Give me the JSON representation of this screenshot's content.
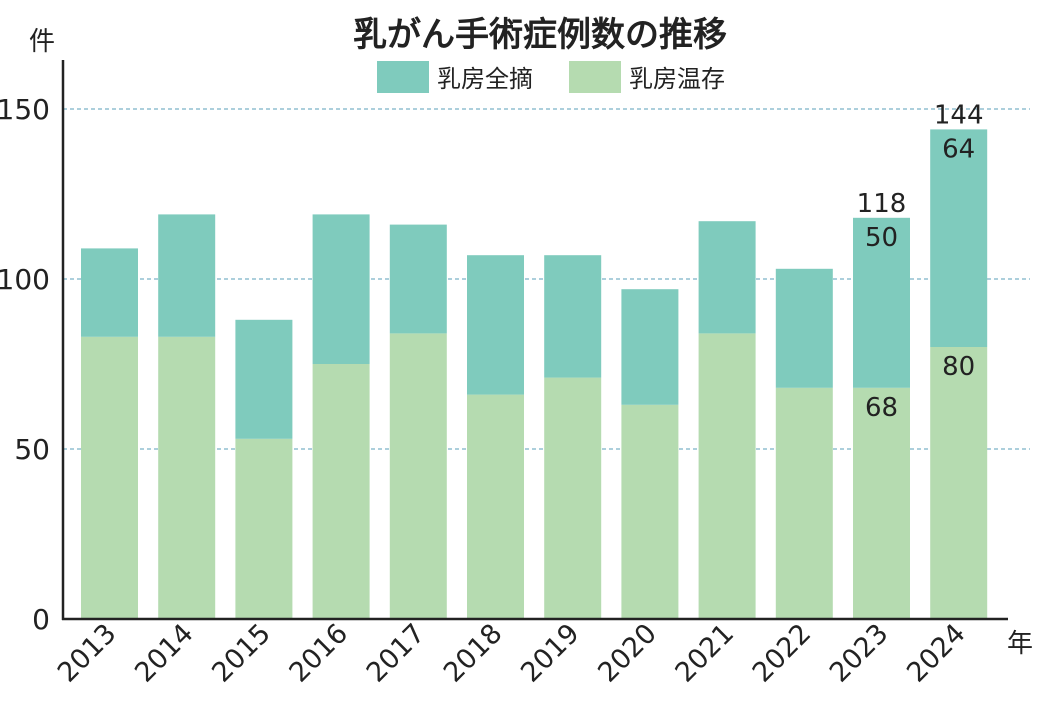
{
  "chart_data": {
    "type": "bar",
    "stacked": true,
    "title": "乳がん手術症例数の推移",
    "ylabel": "件",
    "xlabel": "年",
    "ylim": [
      0,
      160
    ],
    "yticks": [
      0,
      50,
      100,
      150
    ],
    "grid": "dashed horizontal at 50, 100, 150",
    "legend_position": "top-center",
    "categories": [
      "2013",
      "2014",
      "2015",
      "2016",
      "2017",
      "2018",
      "2019",
      "2020",
      "2021",
      "2022",
      "2023",
      "2024"
    ],
    "series": [
      {
        "name": "乳房温存",
        "color": "#b5dbb0",
        "values": [
          83,
          83,
          53,
          75,
          84,
          66,
          71,
          63,
          84,
          68,
          68,
          80
        ]
      },
      {
        "name": "乳房全摘",
        "color": "#7fcbbd",
        "values": [
          26,
          36,
          35,
          44,
          32,
          41,
          36,
          34,
          33,
          35,
          50,
          64
        ]
      }
    ],
    "data_labels": [
      {
        "category": "2023",
        "total": "118",
        "full": "50",
        "conserve": "68"
      },
      {
        "category": "2024",
        "total": "144",
        "full": "64",
        "conserve": "80"
      }
    ]
  }
}
